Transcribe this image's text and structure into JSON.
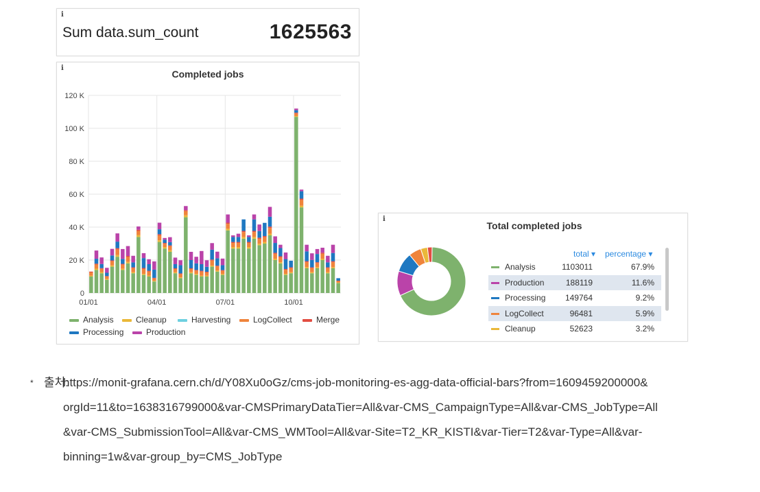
{
  "stat_panel": {
    "info": "i",
    "label": "Sum data.sum_count",
    "value": "1625563"
  },
  "bar_panel": {
    "info": "i"
  },
  "pie_panel": {
    "info": "i",
    "header_total": "total ▾",
    "header_percentage": "percentage ▾"
  },
  "colors": {
    "Analysis": "#7eb26d",
    "Cleanup": "#eab839",
    "Harvesting": "#6ed0e0",
    "LogCollect": "#ef843c",
    "Merge": "#e24d42",
    "Processing": "#1f78c1",
    "Production": "#ba43a9"
  },
  "chart_data": [
    {
      "type": "bar",
      "stacked": true,
      "title": "Completed jobs",
      "xlabel": "",
      "ylabel": "",
      "ylim": [
        0,
        120000
      ],
      "yticks": [
        0,
        20000,
        40000,
        60000,
        80000,
        100000,
        120000
      ],
      "ytick_labels": [
        "0",
        "20 K",
        "40 K",
        "60 K",
        "80 K",
        "100 K",
        "120 K"
      ],
      "xtick_labels": [
        "01/01",
        "04/01",
        "07/01",
        "10/01"
      ],
      "xtick_weeks": [
        0,
        13,
        26,
        39
      ],
      "legend": [
        "Analysis",
        "Cleanup",
        "Harvesting",
        "LogCollect",
        "Merge",
        "Processing",
        "Production"
      ],
      "legend_position": "bottom",
      "grid": true,
      "weeks": 48,
      "series": [
        {
          "name": "Analysis",
          "values": [
            10000,
            14000,
            12000,
            8000,
            16000,
            22000,
            14000,
            18000,
            12000,
            34000,
            11000,
            10000,
            7000,
            31000,
            27000,
            25000,
            12000,
            9000,
            46000,
            12000,
            11000,
            10000,
            10000,
            16000,
            13000,
            11000,
            38000,
            27000,
            27000,
            33000,
            27000,
            33000,
            29000,
            30000,
            35000,
            20000,
            18000,
            11000,
            12000,
            107000,
            52000,
            15000,
            12000,
            15000,
            20000,
            12000,
            15000,
            6000
          ]
        },
        {
          "name": "Cleanup",
          "values": [
            500,
            800,
            700,
            500,
            800,
            1000,
            700,
            900,
            600,
            1200,
            600,
            500,
            400,
            1000,
            900,
            900,
            600,
            500,
            1200,
            600,
            600,
            500,
            500,
            700,
            600,
            500,
            1000,
            900,
            900,
            1000,
            900,
            1000,
            900,
            900,
            1000,
            800,
            700,
            600,
            600,
            500,
            1000,
            700,
            600,
            700,
            800,
            600,
            700,
            300
          ]
        },
        {
          "name": "Harvesting",
          "values": [
            0,
            0,
            0,
            0,
            0,
            0,
            0,
            0,
            0,
            0,
            0,
            0,
            0,
            0,
            0,
            0,
            0,
            0,
            0,
            0,
            0,
            0,
            0,
            0,
            0,
            0,
            0,
            0,
            0,
            0,
            0,
            0,
            0,
            0,
            0,
            0,
            0,
            0,
            0,
            0,
            0,
            0,
            0,
            0,
            0,
            0,
            0,
            0
          ]
        },
        {
          "name": "LogCollect",
          "values": [
            2000,
            2500,
            2000,
            1500,
            2500,
            3500,
            2500,
            3000,
            2500,
            2500,
            3000,
            2500,
            1500,
            3000,
            2000,
            2500,
            2000,
            2000,
            2500,
            2000,
            2000,
            2500,
            2000,
            3000,
            2500,
            2000,
            3000,
            2500,
            2500,
            3000,
            2500,
            3000,
            3000,
            3000,
            3500,
            3000,
            3000,
            2500,
            2500,
            1500,
            3500,
            3000,
            2500,
            2500,
            3000,
            2500,
            3000,
            1000
          ]
        },
        {
          "name": "Merge",
          "values": [
            500,
            500,
            400,
            300,
            500,
            700,
            500,
            600,
            500,
            700,
            600,
            500,
            300,
            700,
            500,
            500,
            400,
            400,
            600,
            400,
            400,
            500,
            400,
            600,
            500,
            400,
            700,
            600,
            600,
            700,
            600,
            700,
            700,
            700,
            800,
            600,
            600,
            500,
            500,
            500,
            800,
            600,
            500,
            500,
            700,
            500,
            600,
            200
          ]
        },
        {
          "name": "Processing",
          "values": [
            0,
            3000,
            2500,
            2000,
            3000,
            4000,
            3000,
            0,
            3000,
            0,
            6000,
            4000,
            5000,
            3000,
            2000,
            2000,
            2500,
            5000,
            0,
            5000,
            4000,
            4000,
            3000,
            6000,
            4500,
            3000,
            0,
            3000,
            3000,
            7000,
            3000,
            7000,
            4000,
            8000,
            6000,
            6000,
            5000,
            6000,
            4000,
            1500,
            4500,
            6000,
            4500,
            5000,
            0,
            3000,
            5000,
            1500
          ]
        },
        {
          "name": "Production",
          "values": [
            0,
            5000,
            4000,
            3000,
            4000,
            5000,
            6000,
            6000,
            4000,
            2000,
            3000,
            3000,
            5000,
            4000,
            1000,
            3000,
            4000,
            3000,
            2500,
            5000,
            4000,
            8000,
            4000,
            4000,
            4000,
            4000,
            5000,
            1000,
            2000,
            0,
            1000,
            3000,
            4000,
            0,
            6000,
            4000,
            2000,
            4000,
            0,
            1000,
            1000,
            4000,
            4000,
            3000,
            3000,
            4000,
            5000,
            0
          ]
        }
      ]
    },
    {
      "type": "pie",
      "donut": true,
      "title": "Total completed jobs",
      "columns": [
        "total",
        "percentage"
      ],
      "slices": [
        {
          "name": "Analysis",
          "total": "1103011",
          "percentage": "67.9%",
          "value": 67.9
        },
        {
          "name": "Production",
          "total": "188119",
          "percentage": "11.6%",
          "value": 11.6
        },
        {
          "name": "Processing",
          "total": "149764",
          "percentage": "9.2%",
          "value": 9.2
        },
        {
          "name": "LogCollect",
          "total": "96481",
          "percentage": "5.9%",
          "value": 5.9
        },
        {
          "name": "Cleanup",
          "total": "52623",
          "percentage": "3.2%",
          "value": 3.2
        }
      ],
      "other_value": 2.2
    }
  ],
  "footnote": {
    "star": "*",
    "label": "출처:",
    "lines": [
      "https://monit-grafana.cern.ch/d/Y08Xu0oGz/cms-job-monitoring-es-agg-data-official-bars?from=1609459200000&",
      "orgId=11&to=1638316799000&var-CMSPrimaryDataTier=All&var-CMS_CampaignType=All&var-CMS_JobType=All",
      "&var-CMS_SubmissionTool=All&var-CMS_WMTool=All&var-Site=T2_KR_KISTI&var-Tier=T2&var-Type=All&var-",
      "binning=1w&var-group_by=CMS_JobType"
    ]
  }
}
